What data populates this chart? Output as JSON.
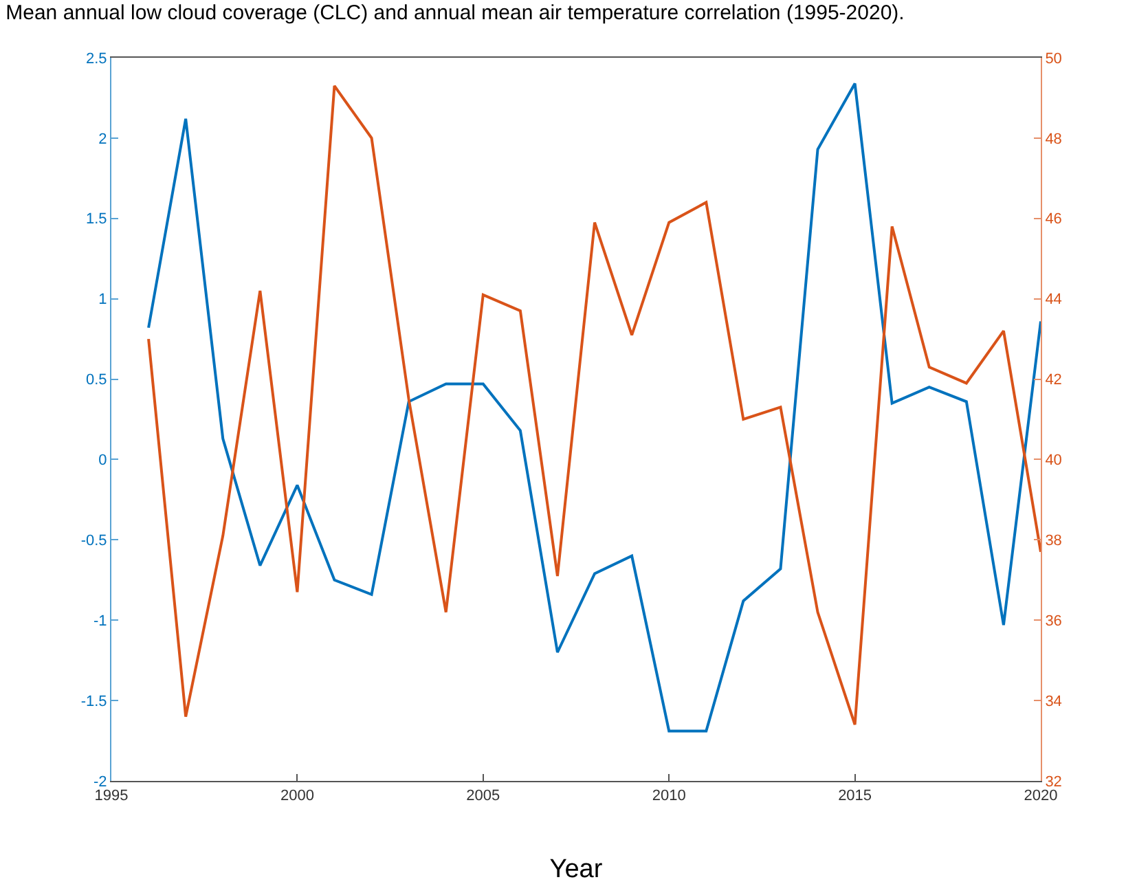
{
  "chart_data": {
    "type": "line",
    "title": "Mean annual low cloud coverage (CLC) and annual mean air temperature correlation (1995-2020).",
    "xlabel": "Year",
    "x": [
      1996,
      1997,
      1998,
      1999,
      2000,
      2001,
      2002,
      2003,
      2004,
      2005,
      2006,
      2007,
      2008,
      2009,
      2010,
      2011,
      2012,
      2013,
      2014,
      2015,
      2016,
      2017,
      2018,
      2019,
      2020
    ],
    "series": [
      {
        "color": "#0072bd",
        "values": [
          0.82,
          2.12,
          0.13,
          -0.66,
          -0.16,
          -0.75,
          -0.84,
          0.36,
          0.47,
          0.47,
          0.18,
          -1.2,
          -0.71,
          -0.6,
          -1.69,
          -1.69,
          -0.88,
          -0.68,
          1.93,
          2.34,
          0.35,
          0.45,
          0.36,
          -1.03,
          0.86
        ]
      },
      {
        "color": "#d95319",
        "axis": "y2",
        "values": [
          43.0,
          33.6,
          38.1,
          44.2,
          36.7,
          49.3,
          48.0,
          41.5,
          36.2,
          44.1,
          43.7,
          37.1,
          45.9,
          43.1,
          45.9,
          46.4,
          41.0,
          41.3,
          36.2,
          33.4,
          45.8,
          42.3,
          41.9,
          43.2,
          37.7
        ]
      }
    ],
    "xlim": [
      1995,
      2020
    ],
    "xticks": [
      1995,
      2000,
      2005,
      2010,
      2015,
      2020
    ],
    "ylim": [
      -2,
      2.5
    ],
    "yticks": [
      -2,
      -1.5,
      -1,
      -0.5,
      0,
      0.5,
      1,
      1.5,
      2,
      2.5
    ],
    "y2lim": [
      32,
      50
    ],
    "y2ticks": [
      32,
      34,
      36,
      38,
      40,
      42,
      44,
      46,
      48,
      50
    ],
    "marker": "none",
    "line_style": "solid"
  }
}
